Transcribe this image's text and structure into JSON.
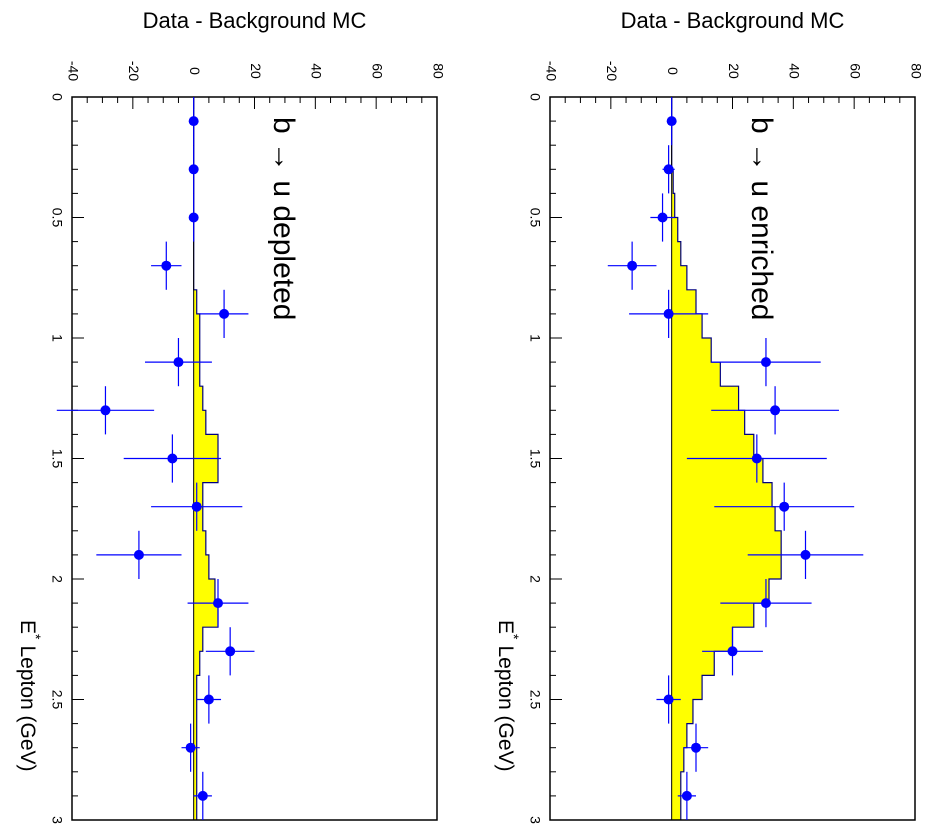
{
  "chart_data": [
    {
      "type": "bar+scatter",
      "orientation": "rotated-90-clockwise",
      "annotation": "b → u enriched",
      "ylabel": "Data - Background MC",
      "xlabel": "E* Lepton (GeV)",
      "xlabel_main": "E",
      "xlabel_sup": "*",
      "xlabel_rest": "Lepton (GeV)",
      "xlim": [
        0,
        3
      ],
      "ylim": [
        -40,
        80
      ],
      "x_ticks": [
        "0",
        "0.5",
        "1",
        "1.5",
        "2",
        "2.5",
        "3"
      ],
      "y_ticks": [
        "-40",
        "-20",
        "0",
        "20",
        "40",
        "60",
        "80"
      ],
      "histogram": {
        "color": "#ffff00",
        "bin_edges": [
          0,
          0.1,
          0.2,
          0.3,
          0.4,
          0.5,
          0.6,
          0.7,
          0.8,
          0.9,
          1.0,
          1.1,
          1.2,
          1.3,
          1.4,
          1.5,
          1.6,
          1.7,
          1.8,
          1.9,
          2.0,
          2.1,
          2.2,
          2.3,
          2.4,
          2.5,
          2.6,
          2.7,
          2.8,
          2.9,
          3.0
        ],
        "values": [
          0,
          0,
          0,
          0.5,
          1,
          2,
          3,
          5,
          8,
          10,
          13,
          16,
          22,
          24,
          27,
          30,
          33,
          34,
          36,
          36,
          32,
          27,
          20,
          14,
          10,
          7,
          5,
          4,
          3,
          3
        ]
      },
      "points": {
        "color": "#0000ff",
        "x": [
          0.1,
          0.3,
          0.5,
          0.7,
          0.9,
          1.1,
          1.3,
          1.5,
          1.7,
          1.9,
          2.1,
          2.3,
          2.5,
          2.7,
          2.9
        ],
        "y": [
          0,
          -1,
          -3,
          -13,
          -1,
          31,
          34,
          28,
          37,
          44,
          31,
          20,
          -1,
          8,
          5
        ],
        "yerr": [
          1,
          2,
          4,
          8,
          13,
          18,
          21,
          23,
          23,
          19,
          15,
          10,
          4,
          4,
          3
        ],
        "xerr": [
          0.1,
          0.1,
          0.1,
          0.1,
          0.1,
          0.1,
          0.1,
          0.1,
          0.1,
          0.1,
          0.1,
          0.1,
          0.1,
          0.1,
          0.1
        ]
      }
    },
    {
      "type": "bar+scatter",
      "orientation": "rotated-90-clockwise",
      "annotation": "b → u depleted",
      "ylabel": "Data - Background MC",
      "xlabel": "E* Lepton (GeV)",
      "xlabel_main": "E",
      "xlabel_sup": "*",
      "xlabel_rest": "Lepton (GeV)",
      "xlim": [
        0,
        3
      ],
      "ylim": [
        -40,
        80
      ],
      "x_ticks": [
        "0",
        "0.5",
        "1",
        "1.5",
        "2",
        "2.5",
        "3"
      ],
      "y_ticks": [
        "-40",
        "-20",
        "0",
        "20",
        "40",
        "60",
        "80"
      ],
      "histogram": {
        "color": "#ffff00",
        "bin_edges": [
          0,
          0.1,
          0.2,
          0.3,
          0.4,
          0.5,
          0.6,
          0.7,
          0.8,
          0.9,
          1.0,
          1.1,
          1.2,
          1.3,
          1.4,
          1.5,
          1.6,
          1.7,
          1.8,
          1.9,
          2.0,
          2.1,
          2.2,
          2.3,
          2.4,
          2.5,
          2.6,
          2.7,
          2.8,
          2.9,
          3.0
        ],
        "values": [
          0,
          0,
          0,
          0,
          0,
          0,
          0,
          0,
          1,
          2,
          2,
          2,
          3,
          4,
          8,
          8,
          3,
          3,
          4,
          5,
          7,
          8,
          3,
          2,
          1,
          1,
          1,
          1,
          1,
          1
        ]
      },
      "points": {
        "color": "#0000ff",
        "x": [
          0.1,
          0.3,
          0.5,
          0.7,
          0.9,
          1.1,
          1.3,
          1.5,
          1.7,
          1.9,
          2.1,
          2.3,
          2.5,
          2.7,
          2.9
        ],
        "y": [
          0,
          0,
          0,
          -9,
          10,
          -5,
          -29,
          -7,
          1,
          -18,
          8,
          12,
          5,
          -1,
          3
        ],
        "yerr": [
          1,
          1,
          1,
          5,
          8,
          11,
          16,
          16,
          15,
          14,
          10,
          8,
          4,
          3,
          3
        ],
        "xerr": [
          0.1,
          0.1,
          0.1,
          0.1,
          0.1,
          0.1,
          0.1,
          0.1,
          0.1,
          0.1,
          0.1,
          0.1,
          0.1,
          0.1,
          0.1
        ]
      }
    }
  ]
}
